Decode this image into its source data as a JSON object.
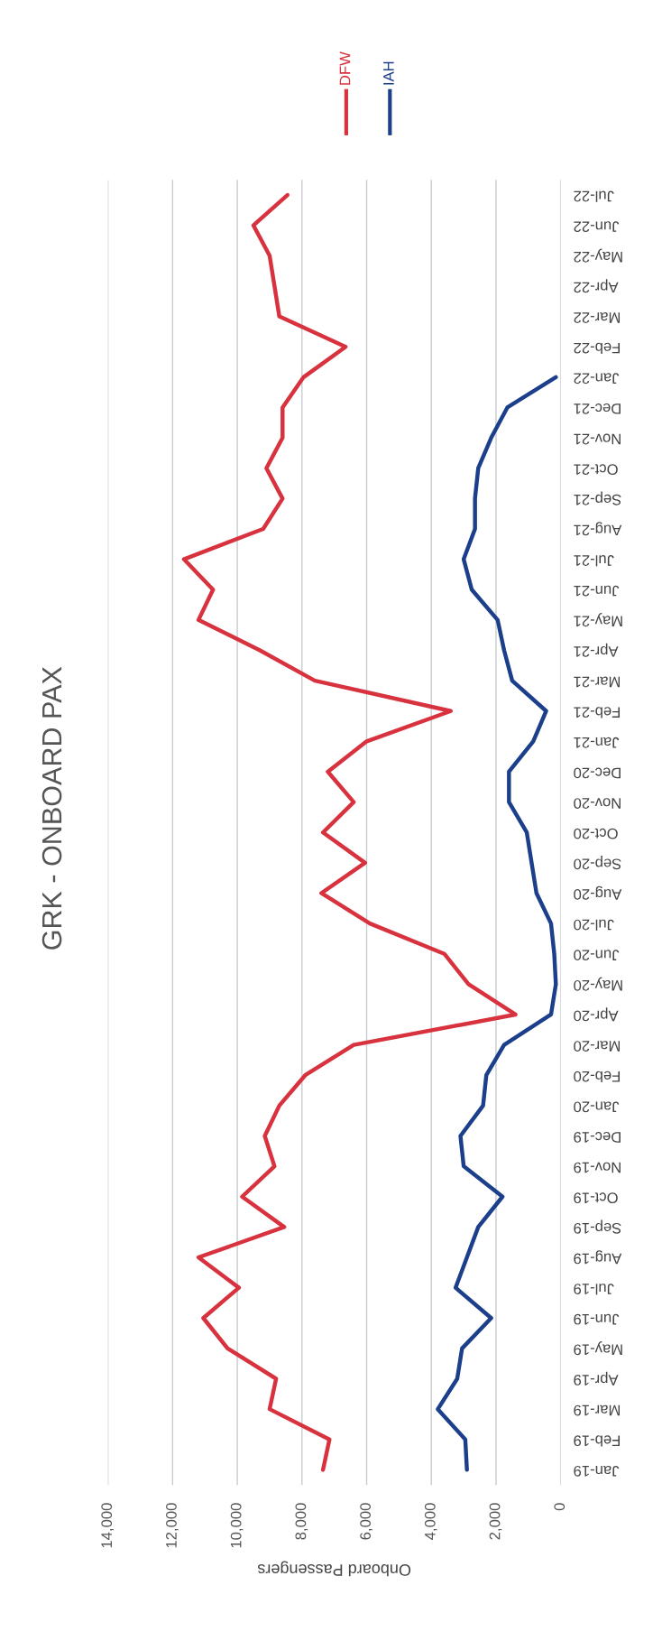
{
  "chart_data": {
    "type": "line",
    "orientation": "horizontal",
    "title": "GRK - ONBOARD PAX",
    "xlabel": "Onboard Passengers",
    "categories": [
      "Jul-22",
      "Jun-22",
      "May-22",
      "Apr-22",
      "Mar-22",
      "Feb-22",
      "Jan-22",
      "Dec-21",
      "Nov-21",
      "Oct-21",
      "Sep-21",
      "Aug-21",
      "Jul-21",
      "Jun-21",
      "May-21",
      "Apr-21",
      "Mar-21",
      "Feb-21",
      "Jan-21",
      "Dec-20",
      "Nov-20",
      "Oct-20",
      "Sep-20",
      "Aug-20",
      "Jul-20",
      "Jun-20",
      "May-20",
      "Apr-20",
      "Mar-20",
      "Feb-20",
      "Jan-20",
      "Dec-19",
      "Nov-19",
      "Oct-19",
      "Sep-19",
      "Aug-19",
      "Jul-19",
      "Jun-19",
      "May-19",
      "Apr-19",
      "Mar-19",
      "Feb-19",
      "Jan-19"
    ],
    "series": [
      {
        "name": "DFW",
        "color": "#d7323e",
        "values": [
          8450,
          9500,
          9000,
          8850,
          8700,
          6650,
          7950,
          8600,
          8600,
          9100,
          8600,
          9200,
          11650,
          10750,
          11200,
          9300,
          7600,
          3400,
          6000,
          7200,
          6400,
          7350,
          6050,
          7400,
          5900,
          3600,
          2850,
          1400,
          6400,
          7900,
          8700,
          9150,
          8850,
          9850,
          8550,
          11200,
          9950,
          11050,
          10300,
          8800,
          9000,
          7150,
          7350
        ]
      },
      {
        "name": "IAH",
        "color": "#1c3f8c",
        "values": [
          null,
          null,
          null,
          null,
          null,
          null,
          150,
          1650,
          2150,
          2550,
          2650,
          2650,
          3000,
          2750,
          1950,
          1750,
          1500,
          450,
          850,
          1600,
          1600,
          1050,
          900,
          750,
          300,
          200,
          150,
          300,
          1750,
          2300,
          2400,
          3100,
          3000,
          1800,
          2550,
          2900,
          3250,
          2150,
          3050,
          3200,
          3800,
          2950,
          2900
        ]
      }
    ],
    "xlim": [
      14000,
      0
    ],
    "xticks": [
      {
        "value": 14000,
        "label": "14,000"
      },
      {
        "value": 12000,
        "label": "12,000"
      },
      {
        "value": 10000,
        "label": "10,000"
      },
      {
        "value": 8000,
        "label": "8,000"
      },
      {
        "value": 6000,
        "label": "6,000"
      },
      {
        "value": 4000,
        "label": "4,000"
      },
      {
        "value": 2000,
        "label": "2,000"
      },
      0
    ],
    "grid": "x",
    "legend": "top"
  }
}
